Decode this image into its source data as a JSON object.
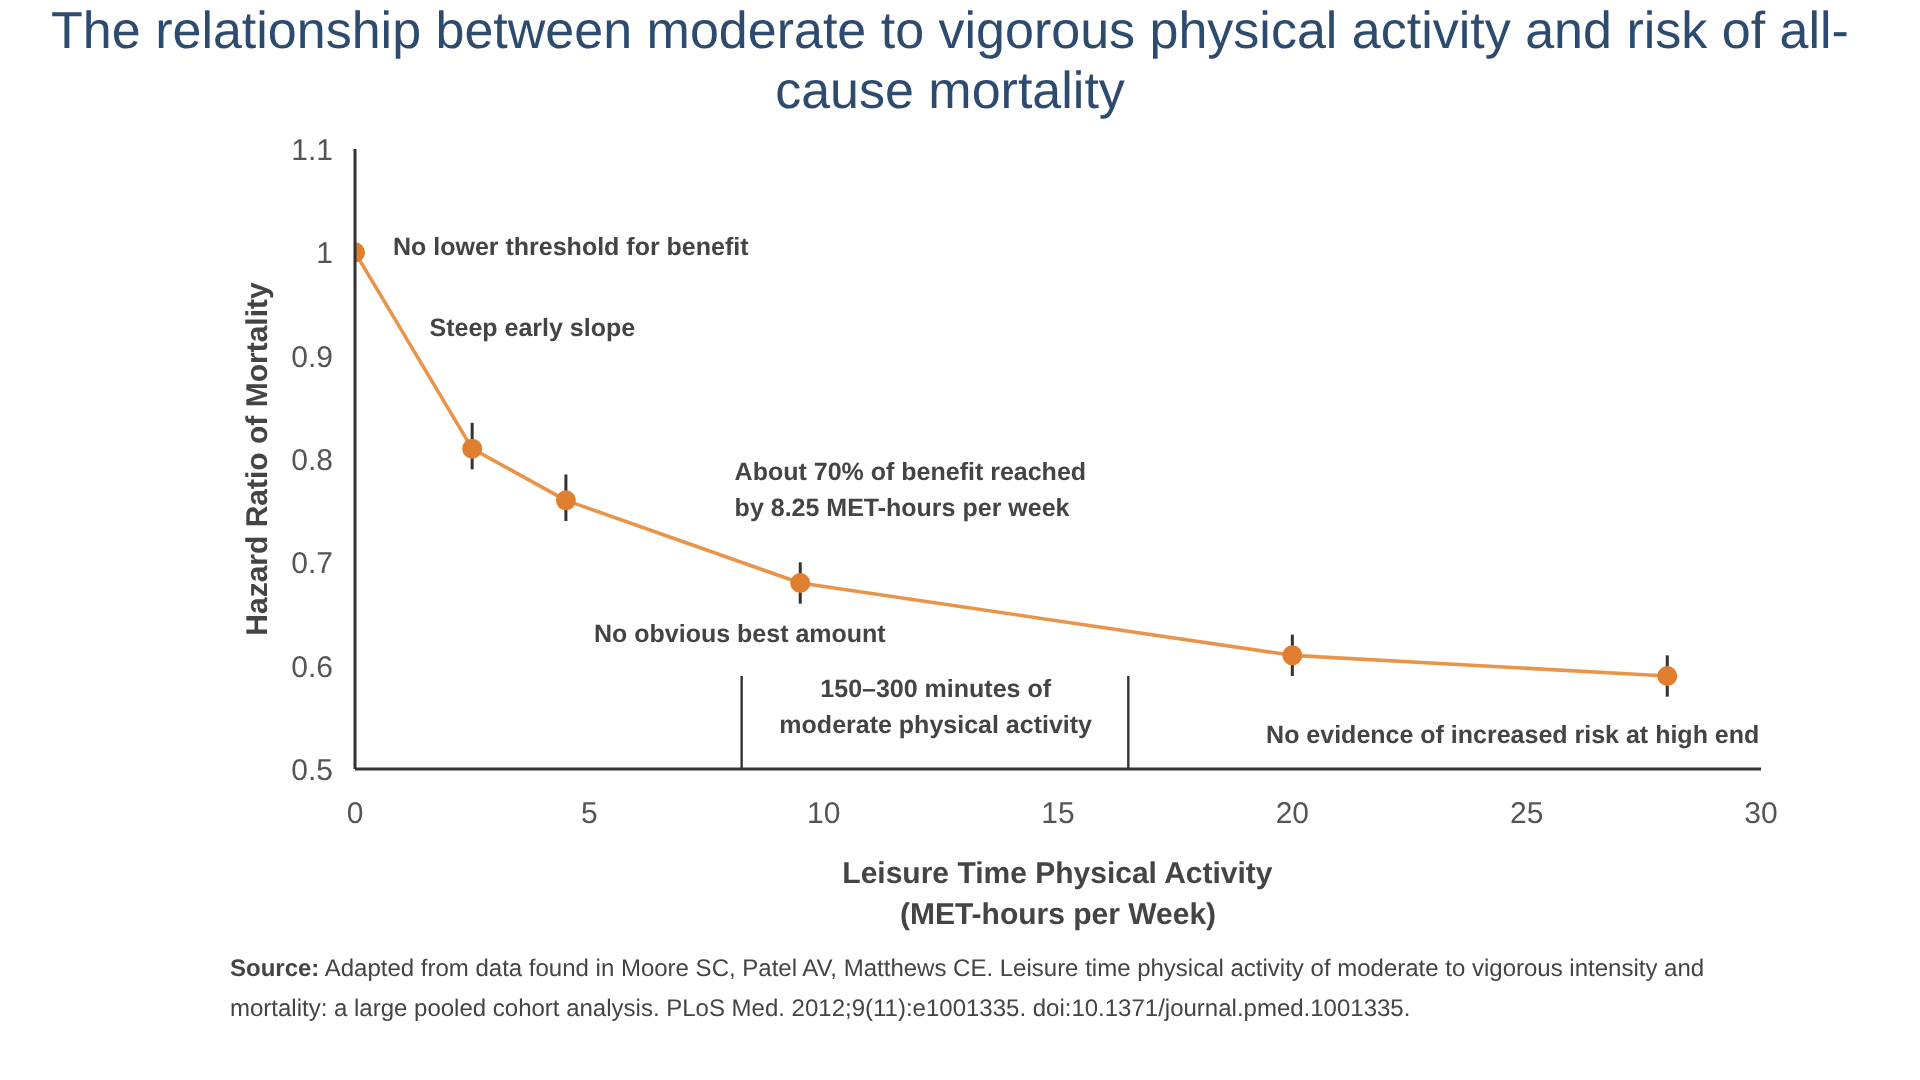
{
  "chart_data": {
    "type": "line",
    "title": "The relationship between moderate to vigorous physical activity and risk of all-cause mortality",
    "xlabel": "Leisure Time Physical Activity\n(MET-hours per Week)",
    "ylabel": "Hazard Ratio of Mortality",
    "x": [
      0,
      2.5,
      4.5,
      9.5,
      20,
      28
    ],
    "series": [
      {
        "color": "#e8944a",
        "values": [
          1.0,
          0.81,
          0.76,
          0.68,
          0.61,
          0.59
        ],
        "errors": [
          null,
          [
            0.79,
            0.835
          ],
          [
            0.74,
            0.785
          ],
          [
            0.66,
            0.7
          ],
          [
            0.59,
            0.63
          ],
          [
            0.57,
            0.61
          ]
        ]
      }
    ],
    "marker": "circle",
    "line_style": "solid",
    "grid": false,
    "xlim": [
      0,
      30
    ],
    "ylim": [
      0.5,
      1.1
    ],
    "xticks": [
      0,
      5,
      10,
      15,
      20,
      25,
      30
    ],
    "yticks": [
      0.5,
      0.6,
      0.7,
      0.8,
      0.9,
      1,
      1.1
    ],
    "ref_lines": [
      {
        "axis": "x",
        "value": 8.25,
        "color": "#333333"
      },
      {
        "axis": "x",
        "value": 16.5,
        "color": "#333333"
      }
    ],
    "annotations": [
      "No lower threshold for benefit",
      "Steep early slope",
      "About 70% of benefit reached\nby 8.25 MET-hours per week",
      "No obvious best amount",
      "150–300 minutes of\nmoderate physical activity",
      "No evidence of increased risk at high end",
      "Source: Adapted from data found in Moore SC, Patel AV, Matthews CE. Leisure time physical activity of moderate to vigorous intensity and mortality: a large pooled cohort analysis. PLoS Med. 2012;9(11):e1001335. doi:10.1371/journal.pmed.1001335."
    ]
  }
}
